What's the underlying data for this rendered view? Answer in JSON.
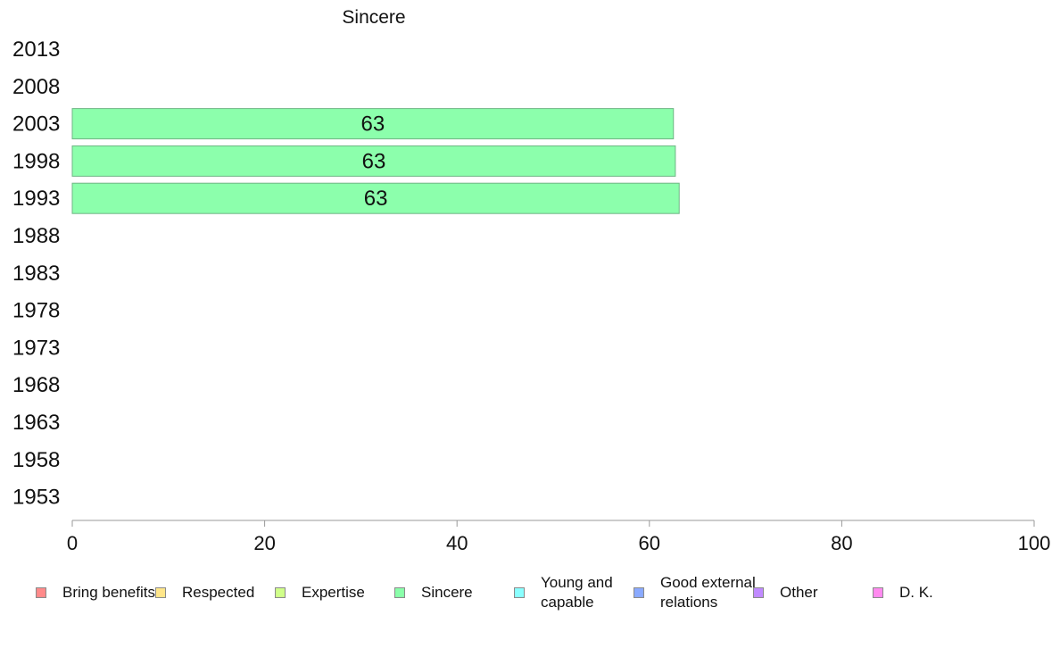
{
  "chart_data": {
    "type": "bar",
    "orientation": "horizontal",
    "title": "Sincere",
    "categories": [
      "2013",
      "2008",
      "2003",
      "1998",
      "1993",
      "1988",
      "1983",
      "1978",
      "1973",
      "1968",
      "1963",
      "1958",
      "1953"
    ],
    "series": [
      {
        "name": "Sincere",
        "color": "#8cffac",
        "values": [
          null,
          null,
          62.5,
          62.7,
          63.1,
          null,
          null,
          null,
          null,
          null,
          null,
          null,
          null
        ],
        "labels": [
          "",
          "",
          "63",
          "63",
          "63",
          "",
          "",
          "",
          "",
          "",
          "",
          "",
          ""
        ]
      }
    ],
    "xlim": [
      0,
      100
    ],
    "xticks": [
      "0",
      "20",
      "40",
      "60",
      "80",
      "100"
    ],
    "xlabel": "",
    "ylabel": "",
    "grid": false,
    "legend_position": "bottom",
    "legend": [
      {
        "label": "Bring benefits",
        "color": "#ff8a8a"
      },
      {
        "label": "Respected",
        "color": "#ffe68a"
      },
      {
        "label": "Expertise",
        "color": "#d0ff8a"
      },
      {
        "label": "Sincere",
        "color": "#8affaa"
      },
      {
        "label": "Young and capable",
        "color": "#8affff"
      },
      {
        "label": "Good external relations",
        "color": "#8aaaff"
      },
      {
        "label": "Other",
        "color": "#c08aff"
      },
      {
        "label": "D. K.",
        "color": "#ff8aef"
      }
    ]
  }
}
